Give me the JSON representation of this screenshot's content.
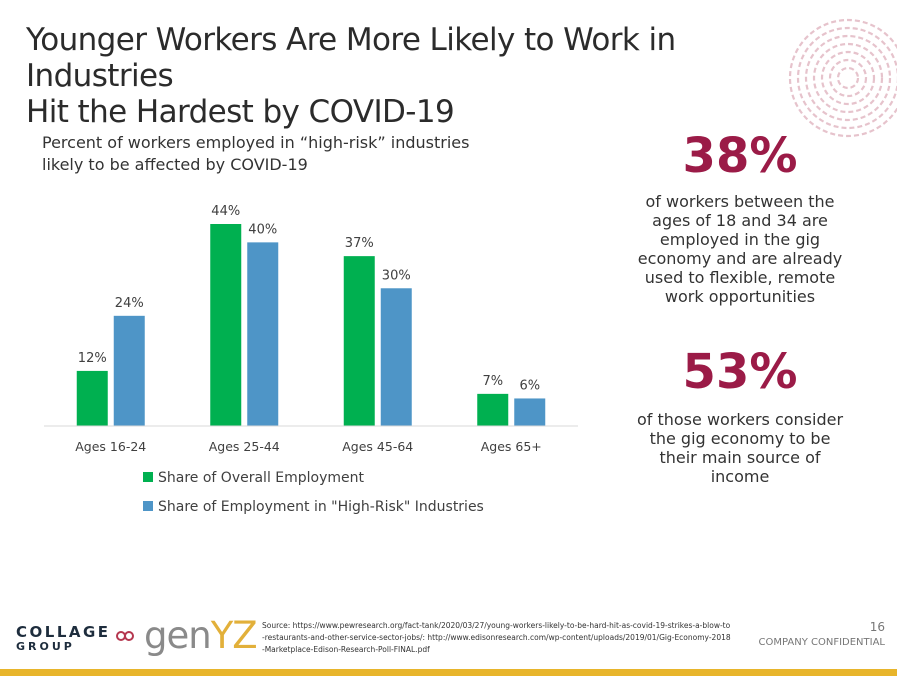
{
  "slide": {
    "title_line1": "Younger Workers Are More Likely to Work in Industries",
    "title_line2": "Hit the Hardest by COVID-19",
    "page_number": "16",
    "confidential": "COMPANY CONFIDENTIAL"
  },
  "chart_data": {
    "type": "bar",
    "title": "Percent of workers employed in “high-risk” industries likely to be affected by COVID-19",
    "xlabel": "",
    "ylabel": "",
    "categories": [
      "Ages 16-24",
      "Ages 25-44",
      "Ages 45-64",
      "Ages 65+"
    ],
    "series": [
      {
        "name": "Share of Overall Employment",
        "values": [
          12,
          44,
          37,
          7
        ],
        "labels": [
          "12%",
          "44%",
          "37%",
          "7%"
        ],
        "color": "#00b050"
      },
      {
        "name": "Share of Employment in \"High-Risk\" Industries",
        "values": [
          24,
          40,
          30,
          6
        ],
        "labels": [
          "24%",
          "40%",
          "30%",
          "6%"
        ],
        "color": "#4e95c7"
      }
    ],
    "ylim": [
      0,
      44
    ],
    "grid": false,
    "legend_position": "bottom-left"
  },
  "stats": [
    {
      "value": "38%",
      "text": "of workers between the ages of 18 and 34 are employed in the gig economy and are already used to flexible, remote work opportunities"
    },
    {
      "value": "53%",
      "text": "of those workers consider the gig economy to be their main source of income"
    }
  ],
  "logos": {
    "collage_line1": "COLLAGE",
    "collage_line2": "GROUP",
    "genyz_a": "gen",
    "genyz_b": "YZ"
  },
  "source_text": "Source: https://www.pewresearch.org/fact-tank/2020/03/27/young-workers-likely-to-be-hard-hit-as-covid-19-strikes-a-blow-to-restaurants-and-other-service-sector-jobs/: http://www.edisonresearch.com/wp-content/uploads/2019/01/Gig-Economy-2018-Marketplace-Edison-Research-Poll-FINAL.pdf",
  "colors": {
    "accent": "#9b1b47",
    "footer": "#e8b52b"
  }
}
